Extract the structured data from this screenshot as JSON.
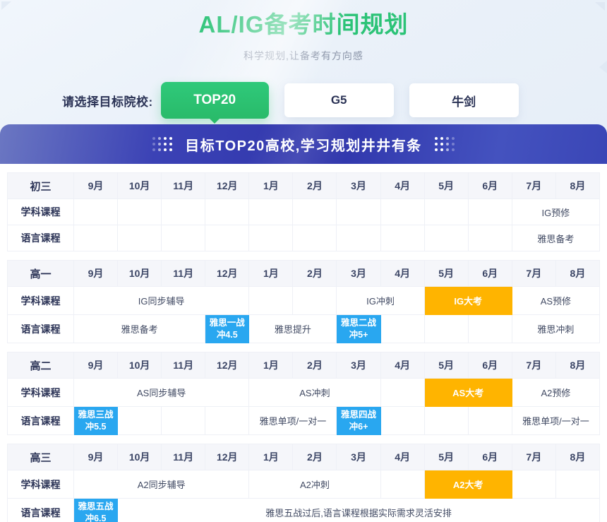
{
  "page": {
    "title": "AL/IG备考时间规划",
    "subtitle": "科学规划,让备考有方向感"
  },
  "selector": {
    "label": "请选择目标院校:",
    "options": [
      {
        "label": "TOP20",
        "active": true
      },
      {
        "label": "G5",
        "active": false
      },
      {
        "label": "牛剑",
        "active": false
      }
    ]
  },
  "banner": {
    "text": "目标TOP20高校,学习规划井井有条"
  },
  "months": [
    "9月",
    "10月",
    "11月",
    "12月",
    "1月",
    "2月",
    "3月",
    "4月",
    "5月",
    "6月",
    "7月",
    "8月"
  ],
  "colors": {
    "accent_green": "#2cc377",
    "highlight_blue": "#29a7f0",
    "highlight_orange": "#ffb400",
    "banner_blue": "#3036ac"
  },
  "tables": [
    {
      "grade": "初三",
      "rows": [
        {
          "label": "学科课程",
          "cells": [
            {
              "text": "",
              "span": 1,
              "style": "empty"
            },
            {
              "text": "",
              "span": 1,
              "style": "empty"
            },
            {
              "text": "",
              "span": 1,
              "style": "empty"
            },
            {
              "text": "",
              "span": 1,
              "style": "empty"
            },
            {
              "text": "",
              "span": 1,
              "style": "empty"
            },
            {
              "text": "",
              "span": 1,
              "style": "empty"
            },
            {
              "text": "",
              "span": 1,
              "style": "empty"
            },
            {
              "text": "",
              "span": 1,
              "style": "empty"
            },
            {
              "text": "",
              "span": 1,
              "style": "empty"
            },
            {
              "text": "",
              "span": 1,
              "style": "empty"
            },
            {
              "text": "IG预修",
              "span": 2,
              "style": "plain"
            }
          ]
        },
        {
          "label": "语言课程",
          "cells": [
            {
              "text": "",
              "span": 1,
              "style": "empty"
            },
            {
              "text": "",
              "span": 1,
              "style": "empty"
            },
            {
              "text": "",
              "span": 1,
              "style": "empty"
            },
            {
              "text": "",
              "span": 1,
              "style": "empty"
            },
            {
              "text": "",
              "span": 1,
              "style": "empty"
            },
            {
              "text": "",
              "span": 1,
              "style": "empty"
            },
            {
              "text": "",
              "span": 1,
              "style": "empty"
            },
            {
              "text": "",
              "span": 1,
              "style": "empty"
            },
            {
              "text": "",
              "span": 1,
              "style": "empty"
            },
            {
              "text": "",
              "span": 1,
              "style": "empty"
            },
            {
              "text": "雅思备考",
              "span": 2,
              "style": "plain"
            }
          ]
        }
      ]
    },
    {
      "grade": "高一",
      "rows": [
        {
          "label": "学科课程",
          "cells": [
            {
              "text": "IG同步辅导",
              "span": 4,
              "style": "plain"
            },
            {
              "text": "",
              "span": 1,
              "style": "empty"
            },
            {
              "text": "",
              "span": 1,
              "style": "empty"
            },
            {
              "text": "IG冲刺",
              "span": 2,
              "style": "plain"
            },
            {
              "text": "IG大考",
              "span": 2,
              "style": "orange"
            },
            {
              "text": "AS预修",
              "span": 2,
              "style": "plain"
            }
          ]
        },
        {
          "label": "语言课程",
          "cells": [
            {
              "text": "雅思备考",
              "span": 3,
              "style": "plain"
            },
            {
              "text": "雅思一战",
              "text2": "冲4.5",
              "span": 1,
              "style": "blue"
            },
            {
              "text": "雅思提升",
              "span": 2,
              "style": "plain"
            },
            {
              "text": "雅思二战",
              "text2": "冲5+",
              "span": 1,
              "style": "blue"
            },
            {
              "text": "",
              "span": 1,
              "style": "empty"
            },
            {
              "text": "",
              "span": 1,
              "style": "empty"
            },
            {
              "text": "",
              "span": 1,
              "style": "empty"
            },
            {
              "text": "雅思冲刺",
              "span": 2,
              "style": "plain"
            }
          ]
        }
      ]
    },
    {
      "grade": "高二",
      "rows": [
        {
          "label": "学科课程",
          "cells": [
            {
              "text": "AS同步辅导",
              "span": 4,
              "style": "plain"
            },
            {
              "text": "AS冲刺",
              "span": 3,
              "style": "plain"
            },
            {
              "text": "",
              "span": 1,
              "style": "empty"
            },
            {
              "text": "AS大考",
              "span": 2,
              "style": "orange"
            },
            {
              "text": "A2预修",
              "span": 2,
              "style": "plain"
            }
          ]
        },
        {
          "label": "语言课程",
          "cells": [
            {
              "text": "雅思三战",
              "text2": "冲5.5",
              "span": 1,
              "style": "blue"
            },
            {
              "text": "",
              "span": 1,
              "style": "empty"
            },
            {
              "text": "",
              "span": 1,
              "style": "empty"
            },
            {
              "text": "",
              "span": 1,
              "style": "empty"
            },
            {
              "text": "雅思单项/一对一",
              "span": 2,
              "style": "plain"
            },
            {
              "text": "雅思四战",
              "text2": "冲6+",
              "span": 1,
              "style": "blue"
            },
            {
              "text": "",
              "span": 1,
              "style": "empty"
            },
            {
              "text": "",
              "span": 1,
              "style": "empty"
            },
            {
              "text": "",
              "span": 1,
              "style": "empty"
            },
            {
              "text": "雅思单项/一对一",
              "span": 2,
              "style": "plain"
            }
          ]
        }
      ]
    },
    {
      "grade": "高三",
      "rows": [
        {
          "label": "学科课程",
          "cells": [
            {
              "text": "A2同步辅导",
              "span": 4,
              "style": "plain"
            },
            {
              "text": "A2冲刺",
              "span": 3,
              "style": "plain"
            },
            {
              "text": "",
              "span": 1,
              "style": "empty"
            },
            {
              "text": "A2大考",
              "span": 2,
              "style": "orange"
            },
            {
              "text": "",
              "span": 1,
              "style": "empty"
            },
            {
              "text": "",
              "span": 1,
              "style": "empty"
            }
          ]
        },
        {
          "label": "语言课程",
          "cells": [
            {
              "text": "雅思五战",
              "text2": "冲6.5",
              "span": 1,
              "style": "blue"
            },
            {
              "text": "雅思五战过后,语言课程根据实际需求灵活安排",
              "span": 11,
              "style": "plain"
            }
          ]
        }
      ]
    }
  ]
}
